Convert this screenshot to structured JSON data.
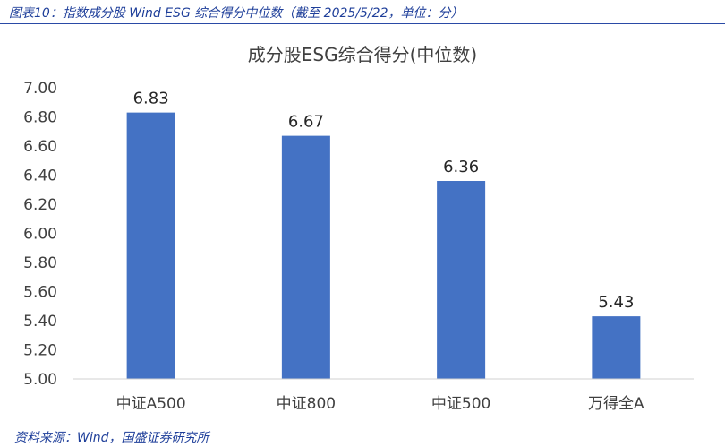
{
  "figure": {
    "title": "图表10：指数成分股 Wind ESG 综合得分中位数（截至 2025/5/22，单位：分）",
    "source": "资料来源：Wind，国盛证券研究所"
  },
  "chart_data": {
    "type": "bar",
    "title": "成分股ESG综合得分(中位数)",
    "categories": [
      "中证A500",
      "中证800",
      "中证500",
      "万得全A"
    ],
    "values": [
      6.83,
      6.67,
      6.36,
      5.43
    ],
    "value_labels": [
      "6.83",
      "6.67",
      "6.36",
      "5.43"
    ],
    "ylim": [
      5.0,
      7.0
    ],
    "yticks": [
      "5.00",
      "5.20",
      "5.40",
      "5.60",
      "5.80",
      "6.00",
      "6.20",
      "6.40",
      "6.60",
      "6.80",
      "7.00"
    ],
    "xlabel": "",
    "ylabel": "",
    "bar_color": "#4472c4",
    "grid": false,
    "legend": "none"
  }
}
